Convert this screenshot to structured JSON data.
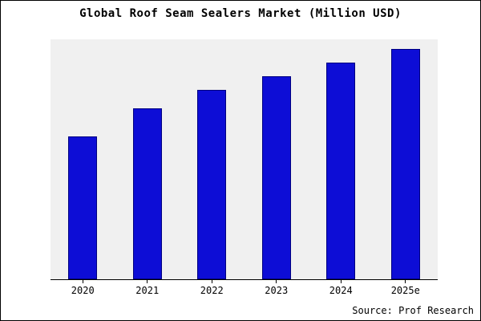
{
  "chart_data": {
    "type": "bar",
    "title": "Global Roof Seam Sealers Market (Million USD)",
    "categories": [
      "2020",
      "2021",
      "2022",
      "2023",
      "2024",
      "2025e"
    ],
    "values": [
      62,
      74,
      82,
      88,
      94,
      100
    ],
    "xlabel": "",
    "ylabel": "",
    "ylim": [
      0,
      104
    ],
    "grid": false,
    "legend": false,
    "bar_color": "#0d0dd6",
    "bar_edge_color": "#000080",
    "plot_bg": "#f0f0f0"
  },
  "source": {
    "label": "Source: Prof Research"
  }
}
